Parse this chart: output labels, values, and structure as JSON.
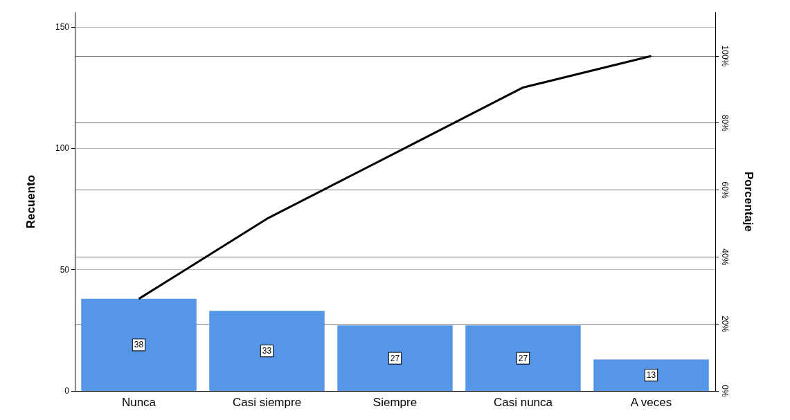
{
  "chart_data": {
    "type": "bar",
    "ylabel": "Recuento",
    "y2label": "Porcentaje",
    "categories": [
      "Nunca",
      "Casi siempre",
      "Siempre",
      "Casi nunca",
      "A veces"
    ],
    "series": [
      {
        "color": "#5596e6",
        "values": [
          38,
          33,
          27,
          27,
          13
        ],
        "value_labels": [
          "38",
          "33",
          "27",
          "27",
          "13"
        ]
      },
      {
        "type": "line",
        "axis": "y2",
        "color": "#000000",
        "marker": "none",
        "line_style": "solid",
        "values": [
          27.5,
          51.4,
          71.0,
          90.6,
          100
        ]
      }
    ],
    "ylim": [
      0,
      156
    ],
    "yticks": [
      0,
      50,
      100,
      150
    ],
    "y2lim": [
      0,
      113
    ],
    "y2ticks": [
      {
        "value": 0,
        "label": "0%"
      },
      {
        "value": 20,
        "label": "20%"
      },
      {
        "value": 40,
        "label": "40%"
      },
      {
        "value": 60,
        "label": "60%"
      },
      {
        "value": 80,
        "label": "80%"
      },
      {
        "value": 100,
        "label": "100%"
      }
    ],
    "grid": true
  }
}
